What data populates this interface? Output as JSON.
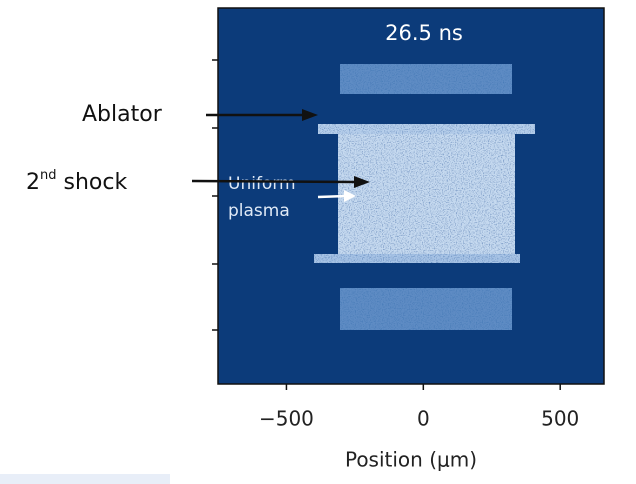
{
  "chart_data": {
    "type": "image",
    "title": "26.5 ns",
    "xlabel": "Position (μm)",
    "xlim": [
      -750,
      660
    ],
    "xticks": [
      {
        "value": -500,
        "label": "−500"
      },
      0,
      500
    ],
    "annotations": {
      "ablator": "Ablator",
      "shock": [
        "2",
        "nd",
        " shock"
      ],
      "plasma": [
        "Uniform",
        "plasma"
      ]
    }
  }
}
